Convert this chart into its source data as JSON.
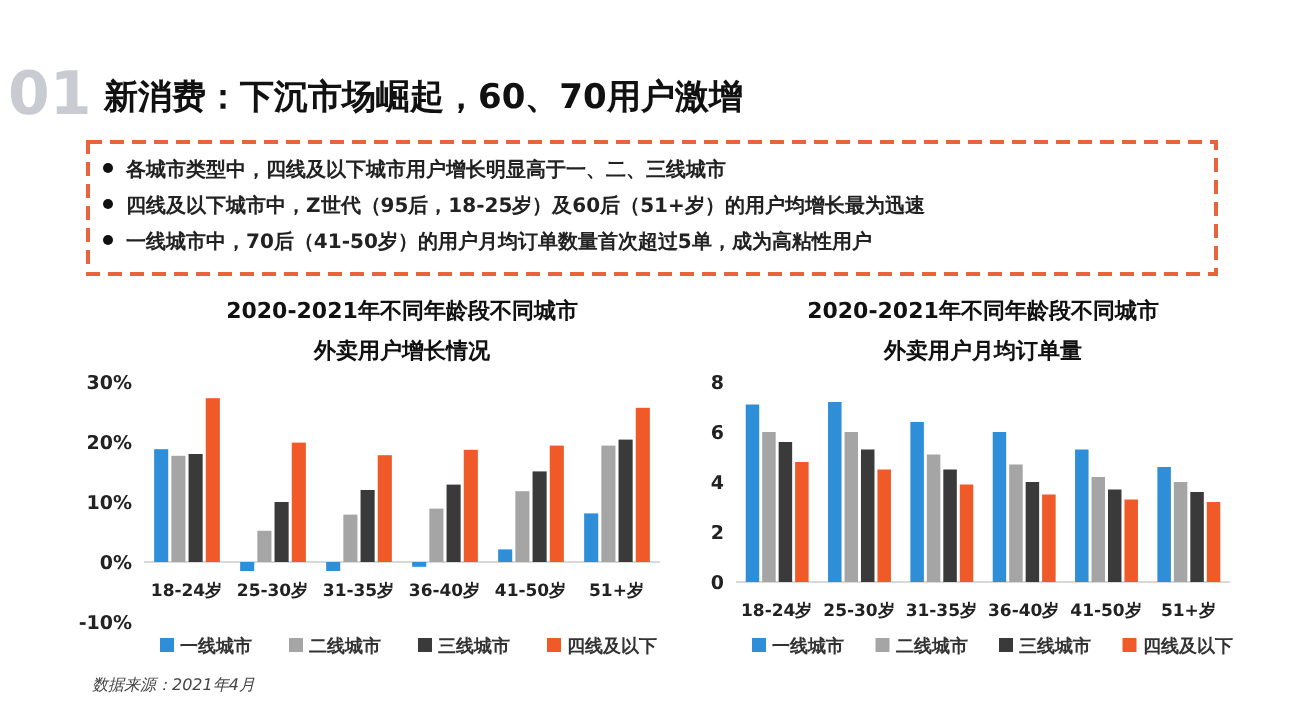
{
  "chart_data": [
    {
      "type": "other",
      "title": "新消费：下沉市场崛起，60、70用户激增",
      "annotations": [
        "01",
        "各城市类型中，四线及以下城市用户增长明显高于一、二、三线城市",
        "四线及以下城市中，Z世代（95后，18-25岁）及60后（51+岁）的用户均增长最为迅速",
        "一线城市中，70后（41-50岁）的用户月均订单数量首次超过5单，成为高粘性用户"
      ]
    },
    {
      "type": "bar",
      "title": "2020-2021年不同年龄段不同城市",
      "subtitle": "外卖用户增长情况",
      "categories": [
        "18-24岁",
        "25-30岁",
        "31-35岁",
        "36-40岁",
        "41-50岁",
        "51+岁"
      ],
      "series": [
        {
          "name": "一线城市",
          "color": "#2e8fd8",
          "values": [
            18.8,
            -1.5,
            -1.5,
            -0.8,
            2.1,
            8.1
          ]
        },
        {
          "name": "二线城市",
          "color": "#a5a5a5",
          "values": [
            17.7,
            5.2,
            7.9,
            8.9,
            11.8,
            19.4
          ]
        },
        {
          "name": "三线城市",
          "color": "#3a3a3a",
          "values": [
            18.0,
            10.0,
            12.0,
            12.9,
            15.1,
            20.4
          ]
        },
        {
          "name": "四线及以下",
          "color": "#ef5a28",
          "values": [
            27.3,
            19.9,
            17.8,
            18.7,
            19.4,
            25.7
          ]
        }
      ],
      "ylim": [
        -10,
        30
      ],
      "yticks": [
        {
          "value": -10,
          "label": "-10%"
        },
        {
          "value": 0,
          "label": "0%"
        },
        {
          "value": 10,
          "label": "10%"
        },
        {
          "value": 20,
          "label": "20%"
        },
        {
          "value": 30,
          "label": "30%"
        }
      ],
      "legend": "bottom",
      "annotations": [
        "数据来源：2021年4月"
      ]
    },
    {
      "type": "bar",
      "title": "2020-2021年不同年龄段不同城市",
      "subtitle": "外卖用户月均订单量",
      "categories": [
        "18-24岁",
        "25-30岁",
        "31-35岁",
        "36-40岁",
        "41-50岁",
        "51+岁"
      ],
      "series": [
        {
          "name": "一线城市",
          "color": "#2e8fd8",
          "values": [
            7.1,
            7.2,
            6.4,
            6.0,
            5.3,
            4.6
          ]
        },
        {
          "name": "二线城市",
          "color": "#a5a5a5",
          "values": [
            6.0,
            6.0,
            5.1,
            4.7,
            4.2,
            4.0
          ]
        },
        {
          "name": "三线城市",
          "color": "#3a3a3a",
          "values": [
            5.6,
            5.3,
            4.5,
            4.0,
            3.7,
            3.6
          ]
        },
        {
          "name": "四线及以下",
          "color": "#ef5a28",
          "values": [
            4.8,
            4.5,
            3.9,
            3.5,
            3.3,
            3.2
          ]
        }
      ],
      "ylim": [
        0,
        8
      ],
      "yticks": [
        0,
        2,
        4,
        6,
        8
      ],
      "legend": "bottom"
    }
  ]
}
